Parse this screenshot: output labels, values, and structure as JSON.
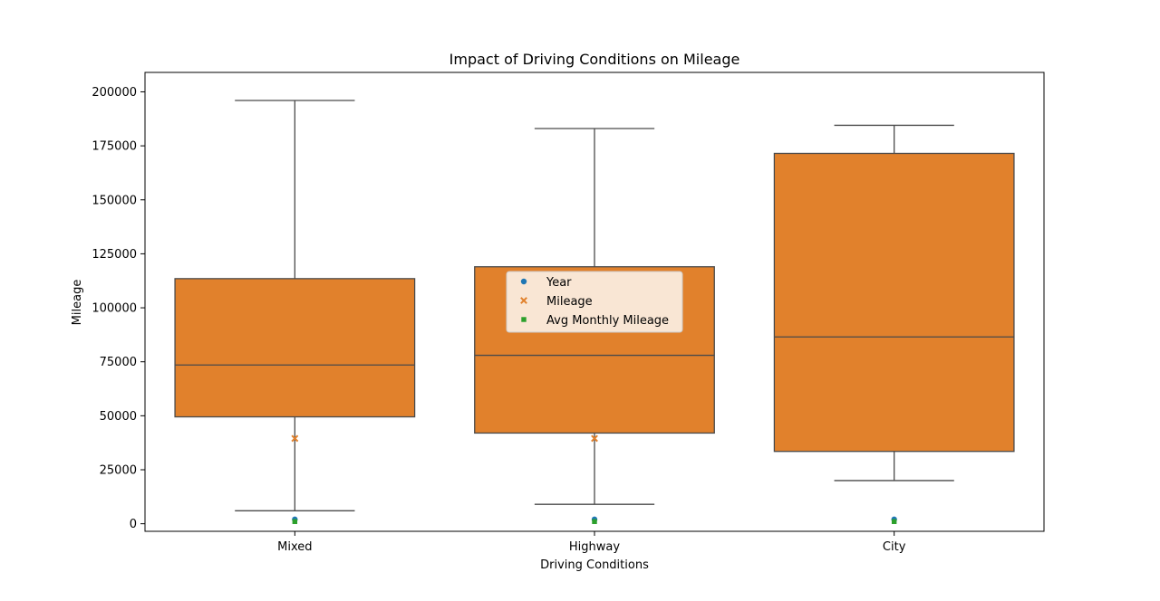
{
  "chart_data": {
    "type": "box",
    "title": "Impact of Driving Conditions on Mileage",
    "xlabel": "Driving Conditions",
    "ylabel": "Mileage",
    "categories": [
      "Mixed",
      "Highway",
      "City"
    ],
    "ylim": [
      -3500,
      209000
    ],
    "yticks": [
      0,
      25000,
      50000,
      75000,
      100000,
      125000,
      150000,
      175000,
      200000
    ],
    "ytick_labels": [
      "0",
      "25000",
      "50000",
      "75000",
      "100000",
      "125000",
      "150000",
      "175000",
      "200000"
    ],
    "boxes": [
      {
        "category": "Mixed",
        "whisker_low": 6000,
        "q1": 49500,
        "median": 73500,
        "q3": 113500,
        "whisker_high": 196000
      },
      {
        "category": "Highway",
        "whisker_low": 9000,
        "q1": 42000,
        "median": 78000,
        "q3": 119000,
        "whisker_high": 183000
      },
      {
        "category": "City",
        "whisker_low": 20000,
        "q1": 33500,
        "median": 86500,
        "q3": 171500,
        "whisker_high": 184500
      }
    ],
    "box_color": "#e1812c",
    "line_color": "#4a4a4a",
    "series": [
      {
        "name": "Year",
        "marker": "circle",
        "color": "#1f77b4",
        "values": [
          2015,
          2015,
          2015
        ]
      },
      {
        "name": "Mileage",
        "marker": "x",
        "color": "#e1812c",
        "values": [
          39500,
          39500,
          null
        ]
      },
      {
        "name": "Avg Monthly Mileage",
        "marker": "square",
        "color": "#2ca02c",
        "values": [
          1000,
          1000,
          1000
        ]
      }
    ],
    "legend_position": "center",
    "grid": false
  }
}
